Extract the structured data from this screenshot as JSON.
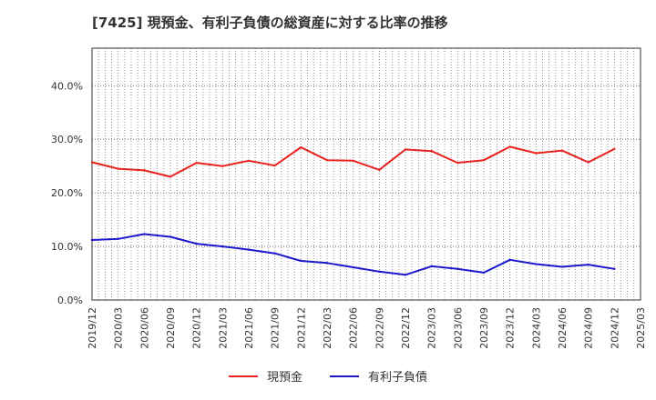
{
  "chart_data": {
    "type": "line",
    "title": "[7425]  現預金、有利子負債の総資産に対する比率の推移",
    "xlabel": "",
    "ylabel": "",
    "ylim": [
      0,
      47
    ],
    "yticks": [
      0,
      10,
      20,
      30,
      40
    ],
    "ytick_labels": [
      "0.0%",
      "10.0%",
      "20.0%",
      "30.0%",
      "40.0%"
    ],
    "categories": [
      "2019/12",
      "2020/03",
      "2020/06",
      "2020/09",
      "2020/12",
      "2021/03",
      "2021/06",
      "2021/09",
      "2021/12",
      "2022/03",
      "2022/06",
      "2022/09",
      "2022/12",
      "2023/03",
      "2023/06",
      "2023/09",
      "2023/12",
      "2024/03",
      "2024/06",
      "2024/09",
      "2024/12",
      "2025/03"
    ],
    "series": [
      {
        "name": "現預金",
        "color": "#e8231e",
        "values": [
          25.7,
          24.5,
          24.2,
          23.0,
          25.6,
          25.0,
          26.0,
          25.1,
          28.5,
          26.1,
          26.0,
          24.3,
          28.1,
          27.8,
          25.6,
          26.1,
          28.6,
          27.4,
          27.9,
          25.7,
          28.2,
          null
        ]
      },
      {
        "name": "有利子負債",
        "color": "#1a1acc",
        "values": [
          11.2,
          11.4,
          12.3,
          11.8,
          10.5,
          10.0,
          9.4,
          8.7,
          7.3,
          6.9,
          6.1,
          5.3,
          4.7,
          6.3,
          5.8,
          5.1,
          7.5,
          6.7,
          6.2,
          6.6,
          5.8,
          null
        ]
      }
    ],
    "grid": true,
    "legend_position": "bottom-center"
  }
}
